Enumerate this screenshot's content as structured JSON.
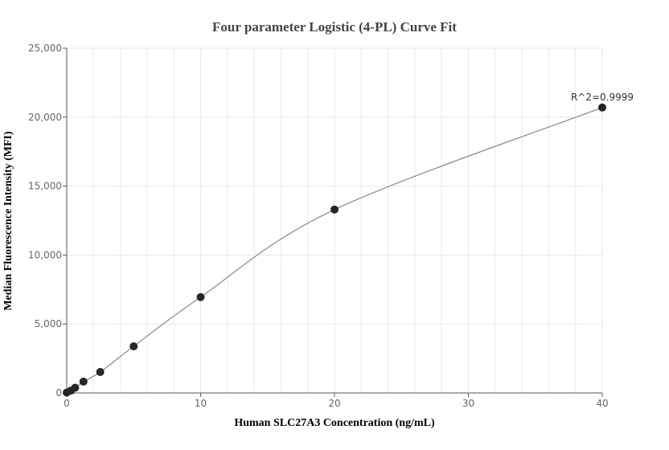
{
  "chart_data": {
    "type": "scatter",
    "title": "Four parameter Logistic (4-PL) Curve Fit",
    "xlabel": "Human SLC27A3 Concentration (ng/mL)",
    "ylabel": "Median Fluorescence Intensity (MFI)",
    "xlim": [
      0,
      40
    ],
    "ylim": [
      0,
      25000
    ],
    "xticks": [
      "0",
      "10",
      "20",
      "30",
      "40"
    ],
    "yticks": [
      "0",
      "5,000",
      "10,000",
      "15,000",
      "20,000",
      "25,000"
    ],
    "grid": true,
    "annotation": "R^2=0.9999",
    "points": {
      "x": [
        0,
        0.3125,
        0.625,
        1.25,
        2.5,
        5,
        10,
        20,
        40
      ],
      "y": [
        30,
        170,
        380,
        820,
        1520,
        3380,
        6950,
        13300,
        20700
      ]
    },
    "fit_line": true,
    "colors": {
      "points": "#262626",
      "line": "#888888",
      "grid": "#e6e9f4",
      "axis": "#555555"
    }
  }
}
